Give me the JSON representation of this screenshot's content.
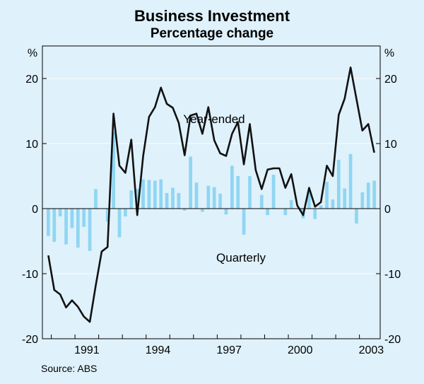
{
  "chart_data": {
    "type": "bar+line",
    "title": "Business Investment",
    "subtitle": "Percentage change",
    "left_unit": "%",
    "right_unit": "%",
    "source": "Source: ABS",
    "ylim": [
      -20,
      25
    ],
    "y_ticks": [
      -20,
      -10,
      0,
      10,
      20
    ],
    "y_tick_labels": [
      "-20",
      "-10",
      "0",
      "10",
      "20"
    ],
    "xlim": [
      1989.625,
      2003.875
    ],
    "x_ticks": [
      1991,
      1994,
      1997,
      2000,
      2003
    ],
    "x_tick_labels": [
      "1991",
      "1994",
      "1997",
      "2000",
      "2003"
    ],
    "annotations": {
      "line_label": "Year-ended",
      "bars_label": "Quarterly"
    },
    "colors": {
      "background": "#dff1fb",
      "bars": "#8fd6f2",
      "line": "#111111",
      "gridline": "#ffffff",
      "axis": "#000000"
    },
    "quarters_start": 1989.875,
    "quarter_step": 0.25,
    "series": [
      {
        "name": "Quarterly",
        "kind": "bar",
        "values": [
          -4.2,
          -5.1,
          -1.2,
          -5.5,
          -3.0,
          -6.0,
          -2.8,
          -6.5,
          3.0,
          0.0,
          -2.0,
          11.8,
          -4.4,
          -1.2,
          2.8,
          3.0,
          4.5,
          4.4,
          4.3,
          4.5,
          2.4,
          3.2,
          2.4,
          -0.3,
          8.0,
          4.0,
          -0.5,
          3.5,
          3.3,
          2.3,
          -0.9,
          6.6,
          5.0,
          -4.0,
          5.0,
          0.0,
          2.1,
          -1.0,
          5.2,
          0.0,
          -1.0,
          1.3,
          0.0,
          -1.5,
          2.5,
          -1.6,
          0.5,
          4.1,
          1.4,
          7.5,
          3.1,
          8.4,
          -2.3,
          2.5,
          4.0,
          4.3
        ]
      },
      {
        "name": "Year-ended",
        "kind": "line",
        "values": [
          -7.2,
          -12.5,
          -13.2,
          -15.2,
          -14.1,
          -15.1,
          -16.6,
          -17.4,
          -11.8,
          -6.6,
          -5.9,
          14.6,
          6.6,
          5.5,
          10.6,
          -1.0,
          8.1,
          14.1,
          15.6,
          18.6,
          16.1,
          15.5,
          13.2,
          8.2,
          14.3,
          14.6,
          11.5,
          15.6,
          10.5,
          8.5,
          8.1,
          11.5,
          13.3,
          6.8,
          13.0,
          5.9,
          3.0,
          6.0,
          6.2,
          6.2,
          3.2,
          5.3,
          0.5,
          -1.0,
          3.2,
          0.3,
          1.0,
          6.6,
          5.0,
          14.4,
          16.9,
          21.7,
          16.8,
          12.0,
          13.0,
          8.6
        ]
      }
    ]
  }
}
